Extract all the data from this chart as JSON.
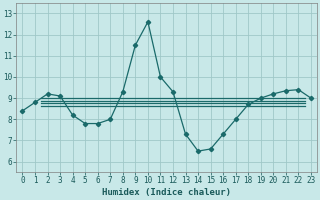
{
  "xlabel": "Humidex (Indice chaleur)",
  "xlim": [
    -0.5,
    23.5
  ],
  "ylim": [
    5.5,
    13.5
  ],
  "xticks": [
    0,
    1,
    2,
    3,
    4,
    5,
    6,
    7,
    8,
    9,
    10,
    11,
    12,
    13,
    14,
    15,
    16,
    17,
    18,
    19,
    20,
    21,
    22,
    23
  ],
  "yticks": [
    6,
    7,
    8,
    9,
    10,
    11,
    12,
    13
  ],
  "bg_color": "#c8e8e8",
  "grid_color": "#a0c8c8",
  "line_color": "#1a6a6a",
  "main_x": [
    0,
    1,
    2,
    3,
    4,
    5,
    6,
    7,
    8,
    9,
    10,
    11,
    12,
    13,
    14,
    15,
    16,
    17,
    18,
    19,
    20,
    21,
    22,
    23
  ],
  "main_y": [
    8.4,
    8.8,
    9.2,
    9.1,
    8.2,
    7.8,
    7.8,
    8.0,
    9.3,
    11.5,
    12.6,
    10.0,
    9.3,
    7.3,
    6.5,
    6.6,
    7.3,
    8.0,
    8.7,
    9.0,
    9.2,
    9.35,
    9.4,
    9.0
  ],
  "hlines": [
    8.65,
    8.78,
    8.88,
    9.0
  ],
  "hline_xstart": 1.5,
  "hline_xend": 22.5
}
